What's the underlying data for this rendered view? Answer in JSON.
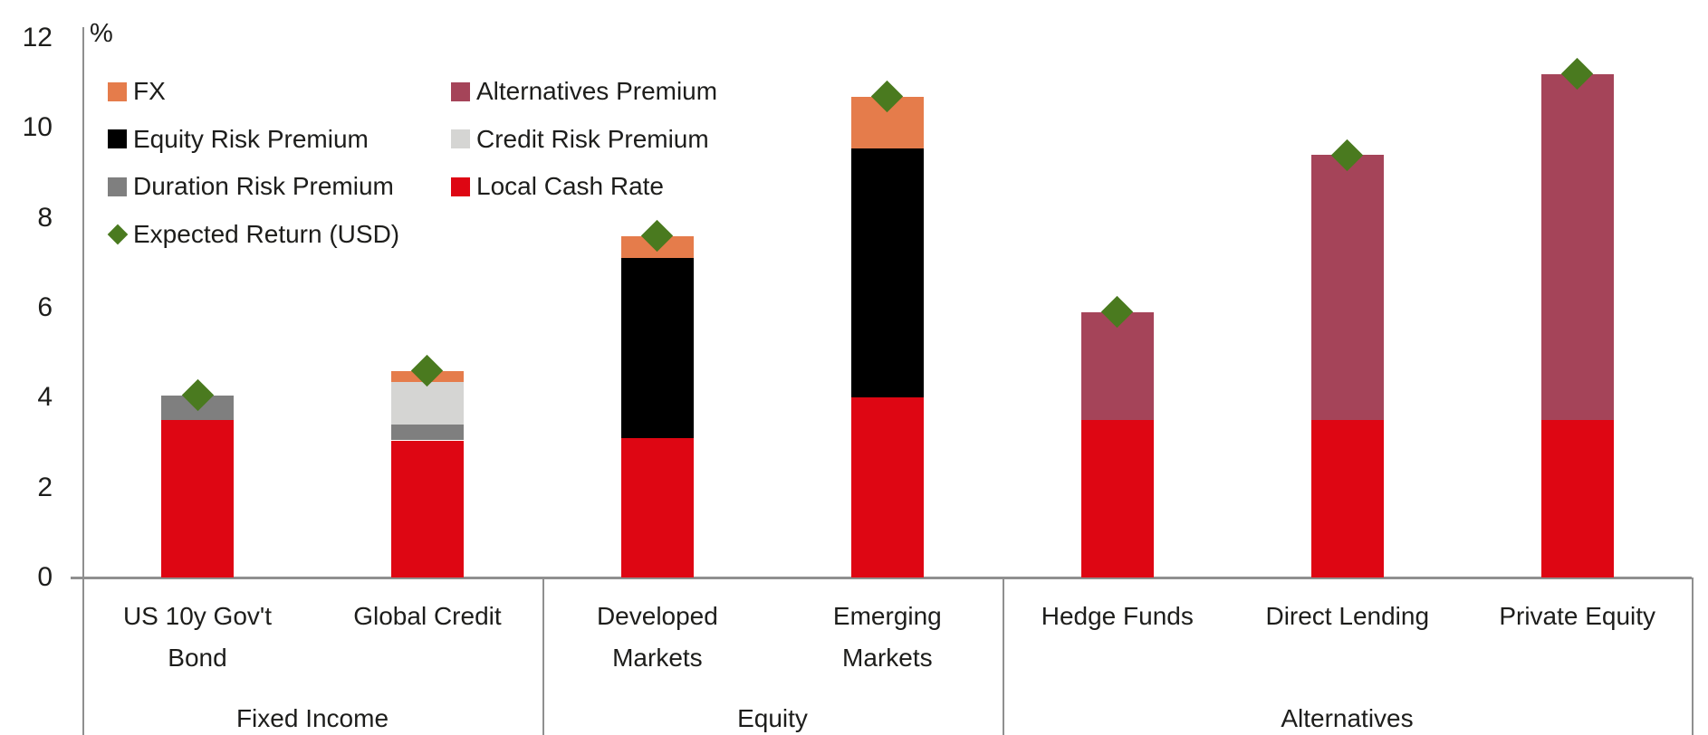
{
  "chart_data": {
    "type": "bar",
    "stacked": true,
    "unit_label": "%",
    "ylim": [
      0,
      12
    ],
    "yticks": [
      0,
      2,
      4,
      6,
      8,
      10,
      12
    ],
    "grid": "off",
    "legend_position": "top-left-inside-plot",
    "axis_color": "#8f8f8f",
    "text_color": "#1d1d1b",
    "legend": [
      {
        "label": "FX",
        "color": "#e57c4b",
        "shape": "square"
      },
      {
        "label": "Alternatives Premium",
        "color": "#a54459",
        "shape": "square"
      },
      {
        "label": "Equity Risk Premium",
        "color": "#000000",
        "shape": "square"
      },
      {
        "label": "Credit Risk Premium",
        "color": "#d5d5d3",
        "shape": "square"
      },
      {
        "label": "Duration Risk Premium",
        "color": "#7f7f7f",
        "shape": "square"
      },
      {
        "label": "Local Cash Rate",
        "color": "#de0613",
        "shape": "square"
      },
      {
        "label": "Expected Return (USD)",
        "color": "#4a7a1f",
        "shape": "diamond"
      }
    ],
    "legend_columns": [
      [
        "FX",
        "Equity Risk Premium",
        "Duration Risk Premium",
        "Expected Return (USD)"
      ],
      [
        "Alternatives Premium",
        "Credit Risk Premium",
        "Local Cash Rate"
      ]
    ],
    "series_order": [
      "Local Cash Rate",
      "Duration Risk Premium",
      "Credit Risk Premium",
      "Equity Risk Premium",
      "Alternatives Premium",
      "FX"
    ],
    "groups": [
      {
        "label": "Fixed Income",
        "bars": [
          "US 10y Gov't Bond",
          "Global Credit"
        ]
      },
      {
        "label": "Equity",
        "bars": [
          "Developed Markets",
          "Emerging Markets"
        ]
      },
      {
        "label": "Alternatives",
        "bars": [
          "Hedge Funds",
          "Direct Lending",
          "Private Equity"
        ]
      }
    ],
    "bars": [
      {
        "label": "US 10y Gov't Bond",
        "label_lines": [
          "US 10y Gov't",
          "Bond"
        ],
        "group": "Fixed Income",
        "segments": {
          "Local Cash Rate": 3.5,
          "Duration Risk Premium": 0.55
        },
        "expected_return_usd": 4.05
      },
      {
        "label": "Global Credit",
        "label_lines": [
          "Global Credit"
        ],
        "group": "Fixed Income",
        "segments": {
          "Local Cash Rate": 3.05,
          "Duration Risk Premium": 0.35,
          "Credit Risk Premium": 0.95,
          "FX": 0.25
        },
        "expected_return_usd": 4.6
      },
      {
        "label": "Developed Markets",
        "label_lines": [
          "Developed",
          "Markets"
        ],
        "group": "Equity",
        "segments": {
          "Local Cash Rate": 3.1,
          "Equity Risk Premium": 4.0,
          "FX": 0.5
        },
        "expected_return_usd": 7.6
      },
      {
        "label": "Emerging Markets",
        "label_lines": [
          "Emerging",
          "Markets"
        ],
        "group": "Equity",
        "segments": {
          "Local Cash Rate": 4.0,
          "Equity Risk Premium": 5.55,
          "FX": 1.15
        },
        "expected_return_usd": 10.7
      },
      {
        "label": "Hedge Funds",
        "label_lines": [
          "Hedge Funds"
        ],
        "group": "Alternatives",
        "segments": {
          "Local Cash Rate": 3.5,
          "Alternatives Premium": 2.4
        },
        "expected_return_usd": 5.9
      },
      {
        "label": "Direct Lending",
        "label_lines": [
          "Direct Lending"
        ],
        "group": "Alternatives",
        "segments": {
          "Local Cash Rate": 3.5,
          "Alternatives Premium": 5.9
        },
        "expected_return_usd": 9.4
      },
      {
        "label": "Private Equity",
        "label_lines": [
          "Private Equity"
        ],
        "group": "Alternatives",
        "segments": {
          "Local Cash Rate": 3.5,
          "Alternatives Premium": 7.7
        },
        "expected_return_usd": 11.2
      }
    ]
  }
}
